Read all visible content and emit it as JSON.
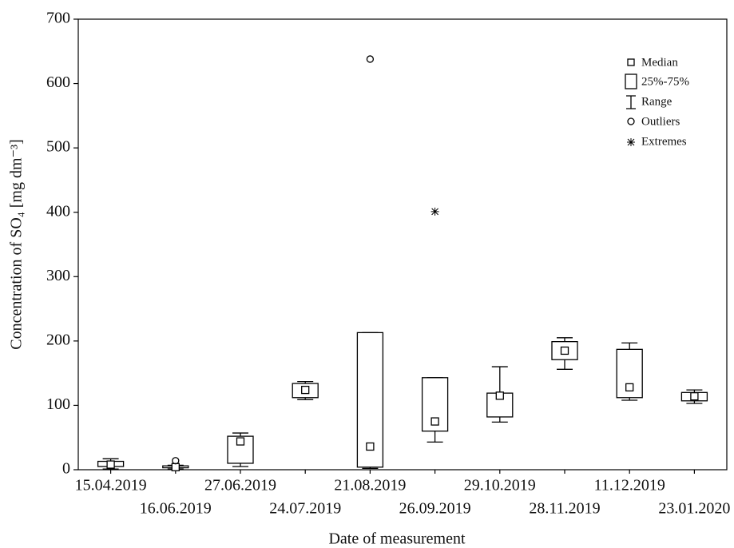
{
  "chart_data": {
    "type": "box",
    "y_label": "Concentration of SO₄ [mg dm⁻³]",
    "x_label": "Date of measurement",
    "categories": [
      "15.04.2019",
      "16.06.2019",
      "27.06.2019",
      "24.07.2019",
      "21.08.2019",
      "26.09.2019",
      "29.10.2019",
      "28.11.2019",
      "11.12.2019",
      "23.01.2020"
    ],
    "min": [
      1,
      1,
      5,
      109,
      2,
      43,
      74,
      156,
      108,
      103
    ],
    "q1": [
      5,
      3,
      10,
      112,
      4,
      60,
      82,
      171,
      112,
      107
    ],
    "median": [
      8,
      4,
      44,
      124,
      36,
      75,
      115,
      185,
      128,
      114
    ],
    "q3": [
      13,
      6,
      52,
      134,
      213,
      143,
      119,
      199,
      187,
      120
    ],
    "max": [
      17,
      7,
      57,
      137,
      213,
      143,
      160,
      205,
      197,
      124
    ],
    "outliers": [
      [],
      [
        14
      ],
      [],
      [],
      [
        638
      ],
      [],
      [],
      [],
      [],
      []
    ],
    "extremes": [
      [],
      [],
      [],
      [],
      [],
      [
        401
      ],
      [],
      [],
      [],
      []
    ],
    "ylim": [
      0,
      700
    ],
    "yticks": [
      0,
      100,
      200,
      300,
      400,
      500,
      600,
      700
    ],
    "legend": [
      "Median",
      "25%-75%",
      "Range",
      "Outliers",
      "Extremes"
    ],
    "color": "#000000"
  }
}
